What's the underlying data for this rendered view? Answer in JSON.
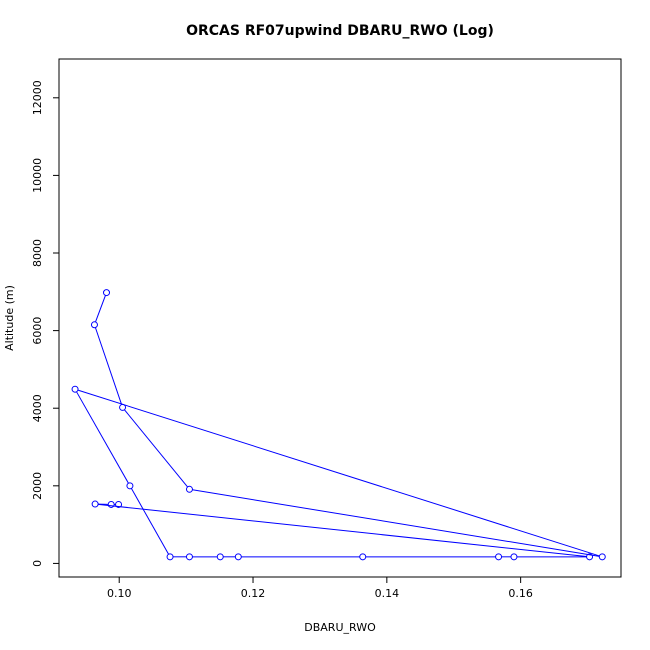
{
  "chart_data": {
    "type": "line",
    "title": "ORCAS RF07upwind DBARU_RWO (Log)",
    "xlabel": "DBARU_RWO",
    "ylabel": "Altitude (m)",
    "xlim": [
      0.091,
      0.175
    ],
    "ylim": [
      -350,
      13000
    ],
    "xticks": [
      0.1,
      0.12,
      0.14,
      0.16
    ],
    "xtick_labels": [
      "0.10",
      "0.12",
      "0.14",
      "0.16"
    ],
    "yticks": [
      0,
      2000,
      4000,
      6000,
      8000,
      10000,
      12000
    ],
    "ytick_labels": [
      "0",
      "2000",
      "4000",
      "6000",
      "8000",
      "10000",
      "12000"
    ],
    "marker": "open-circle",
    "grid": false,
    "series": [
      {
        "color": "#0000ff",
        "x": [
          0.0981,
          0.0963,
          0.1005,
          0.1105,
          0.1722,
          0.0934,
          0.1016,
          0.1076,
          0.1105,
          0.1151,
          0.1178,
          0.1364,
          0.1567,
          0.159,
          0.1703,
          0.0964,
          0.0988,
          0.0999
        ],
        "y": [
          6980,
          6150,
          4020,
          1910,
          170,
          4490,
          2000,
          170,
          170,
          170,
          170,
          170,
          170,
          170,
          170,
          1530,
          1520,
          1520
        ]
      }
    ]
  }
}
